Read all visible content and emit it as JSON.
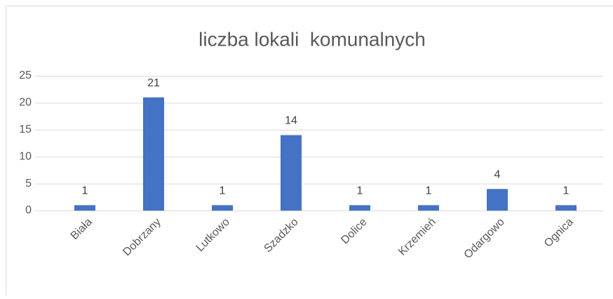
{
  "chart_data": {
    "type": "bar",
    "title": "liczba lokali  komunalnych",
    "categories": [
      "Biała",
      "Dobrzany",
      "Lutkowo",
      "Szadzko",
      "Dolice",
      "Krzemień",
      "Odargowo",
      "Ognica"
    ],
    "values": [
      1,
      21,
      1,
      14,
      1,
      1,
      4,
      1
    ],
    "color": "#4472c4",
    "ylim": [
      0,
      25
    ],
    "yticks": [
      0,
      5,
      10,
      15,
      20,
      25
    ],
    "grid": true
  }
}
